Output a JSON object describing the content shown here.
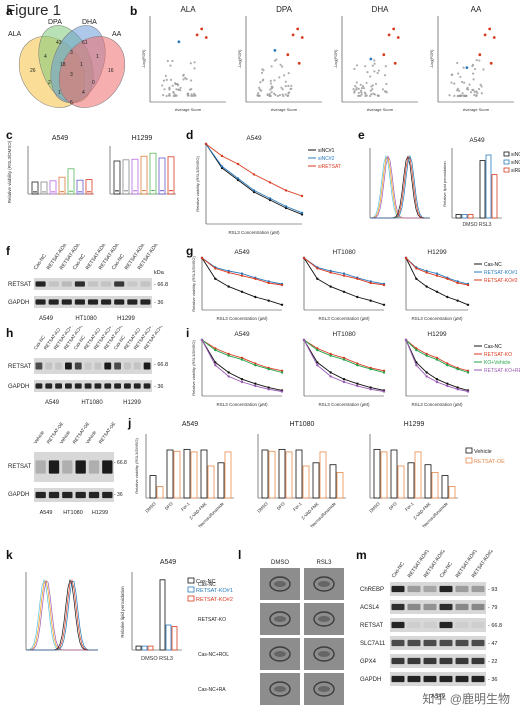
{
  "figure_title": "Figure 1",
  "panel_labels": [
    "a",
    "b",
    "c",
    "d",
    "e",
    "f",
    "g",
    "h",
    "i",
    "j",
    "k",
    "l",
    "m"
  ],
  "venn": {
    "sets": [
      "ALA",
      "DPA",
      "DHA",
      "AA"
    ],
    "numbers": [
      "26",
      "43",
      "61",
      "16",
      "4",
      "3",
      "1",
      "2",
      "18",
      "1",
      "0",
      "3",
      "1",
      "4",
      "6"
    ]
  },
  "volcano": [
    {
      "title": "ALA",
      "xlabel": "Average Score",
      "ylabel": "-Log(FDR)"
    },
    {
      "title": "DPA",
      "xlabel": "Average Score",
      "ylabel": "-Log(FDR)"
    },
    {
      "title": "DHA",
      "xlabel": "Average Score",
      "ylabel": "-Log(FDR)"
    },
    {
      "title": "AA",
      "xlabel": "Average Score",
      "ylabel": "-Log(FDR)"
    }
  ],
  "panel_c": {
    "left_title": "A549",
    "right_title": "H1299",
    "ylabel": "Relative viability (RSL3/DMSO)"
  },
  "panel_d": {
    "title": "A549",
    "xlabel": "RSL3 Concentration (μM)",
    "ylabel": "Relative viability (RSL3/DMSO)",
    "legend": [
      "siNC#1",
      "siNC#2",
      "siRETSAT"
    ]
  },
  "panel_e": {
    "title": "A549",
    "xlabel": "DMSO  RSL3",
    "ylabel": "Relative lipid peroxidation",
    "legend": [
      "siNC#1",
      "siNC#2",
      "siRETSAT"
    ]
  },
  "panel_f": {
    "rows": [
      "RETSAT",
      "GAPDH"
    ],
    "cells": [
      "A549",
      "HT1080",
      "H1299"
    ],
    "kda": [
      "- 66.8",
      "- 36"
    ],
    "kda_title": "kDa",
    "lanes": [
      "Cas-NC",
      "RETSAT-KO#1",
      "RETSAT-KO#2",
      "Cas-NC",
      "RETSAT-KO#1",
      "RETSAT-KO#2",
      "Cas-NC",
      "RETSAT-KO#1",
      "RETSAT-KO#2"
    ]
  },
  "panel_g": {
    "titles": [
      "A549",
      "HT1080",
      "H1299"
    ],
    "xlabel": "RSL3 Concentration (μM)",
    "ylabel": "Relative viability (RSL3/DMSO)",
    "legend": [
      "Cas-NC",
      "RETSAT-KO#1",
      "RETSAT-KO#2"
    ]
  },
  "panel_h": {
    "rows": [
      "RETSAT",
      "GAPDH"
    ],
    "cells": [
      "A549",
      "HT1080",
      "H1299"
    ],
    "kda": [
      "- 66.8",
      "- 36"
    ],
    "lanes": [
      "Cas-NC",
      "RETSAT-KO",
      "RETSAT-KO+Vehicle",
      "RETSAT-KO+RETSAT"
    ]
  },
  "panel_h2": {
    "rows": [
      "RETSAT",
      "GAPDH"
    ],
    "cells": [
      "A549",
      "HT1080",
      "H1299"
    ],
    "kda": [
      "- 66.8",
      "- 36"
    ],
    "lanes": [
      "Vehicle",
      "RETSAT-OE",
      "Vehicle",
      "RETSAT-OE",
      "Vehicle",
      "RETSAT-OE"
    ]
  },
  "panel_i": {
    "titles": [
      "A549",
      "HT1080",
      "H1299"
    ],
    "xlabel": "RSL3 Concentration (μM)",
    "ylabel": "Relative viability (RSL3/DMSO)",
    "legend": [
      "Cas-NC",
      "RETSAT-KO",
      "KO+Vehicle",
      "RETSAT-KO+RETSAT"
    ]
  },
  "panel_j": {
    "titles": [
      "A549",
      "HT1080",
      "H1299"
    ],
    "ylabel": "Relative viability (RSL3/DMSO)",
    "legend": [
      "Vehicle",
      "RETSAT-OE"
    ],
    "xcats": [
      "DMSO",
      "DFO",
      "Fer-1",
      "Z-VAD-FMK",
      "Necrosulfonamide"
    ]
  },
  "panel_k": {
    "title": "A549",
    "xlabel": "DMSO  RSL3",
    "ylabel": "Relative lipid peroxidation",
    "legend": [
      "Cas-NC",
      "RETSAT-KO#1",
      "RETSAT-KO#2"
    ]
  },
  "panel_l": {
    "cols": [
      "DMSO",
      "RSL3"
    ],
    "rows": [
      "Cas-NC",
      "RETSAT-KO",
      "Cas-NC+ROL",
      "Cas-NC+RA"
    ]
  },
  "panel_m": {
    "rows": [
      "ChREBP",
      "ACSL4",
      "RETSAT",
      "SLC7A11",
      "GPX4",
      "GAPDH"
    ],
    "kda": [
      "- 93",
      "- 79",
      "- 66.8",
      "- 47",
      "- 22",
      "- 36"
    ],
    "lanes": [
      "Cas-NC",
      "RETSAT-KO#1",
      "RETSAT-KO#2",
      "Cas-NC",
      "RETSAT-KO#1",
      "RETSAT-KO#2"
    ],
    "cells": [
      "A549"
    ]
  },
  "watermark": "知乎 @鹿明生物",
  "colors": {
    "black": "#111111",
    "blue": "#2a7bbf",
    "red": "#d9391f",
    "green": "#22a34a",
    "orange": "#e8894b",
    "purple": "#9b59b6"
  }
}
